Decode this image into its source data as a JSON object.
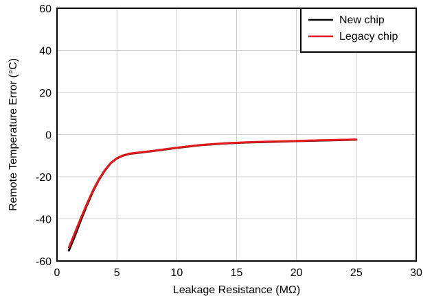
{
  "chart_data": {
    "type": "line",
    "title": "",
    "xlabel": "Leakage Resistance (MΩ)",
    "ylabel": "Remote Temperature Error (°C)",
    "xlim": [
      0,
      30
    ],
    "ylim": [
      -60,
      60
    ],
    "xticks": [
      0,
      5,
      10,
      15,
      20,
      25,
      30
    ],
    "yticks": [
      -60,
      -40,
      -20,
      0,
      20,
      40,
      60
    ],
    "xtick_labels": [
      "0",
      "5",
      "10",
      "15",
      "20",
      "25",
      "30"
    ],
    "ytick_labels": [
      "-60",
      "-40",
      "-20",
      "0",
      "20",
      "40",
      "60"
    ],
    "grid": true,
    "legend_position": "top-right",
    "series": [
      {
        "name": "New chip",
        "color": "#000000",
        "x": [
          1,
          1.5,
          2,
          2.5,
          3,
          3.5,
          4,
          4.5,
          5,
          5.5,
          6,
          7,
          8,
          10,
          12,
          14,
          16,
          18,
          20,
          22,
          25
        ],
        "y": [
          -55,
          -48,
          -40.5,
          -33.5,
          -27,
          -21.5,
          -17,
          -13.5,
          -11.3,
          -10,
          -9.2,
          -8.5,
          -7.8,
          -6.3,
          -5,
          -4.2,
          -3.7,
          -3.4,
          -3.1,
          -2.8,
          -2.4
        ]
      },
      {
        "name": "Legacy chip",
        "color": "#e41a1c",
        "x": [
          1,
          1.5,
          2,
          2.5,
          3,
          3.5,
          4,
          4.5,
          5,
          5.5,
          6,
          7,
          8,
          10,
          12,
          14,
          16,
          18,
          20,
          22,
          25
        ],
        "y": [
          -53.5,
          -46.5,
          -39.5,
          -32.8,
          -26.5,
          -21.2,
          -16.8,
          -13.4,
          -11.2,
          -9.9,
          -9.1,
          -8.4,
          -7.7,
          -6.2,
          -4.9,
          -4.1,
          -3.6,
          -3.3,
          -3,
          -2.7,
          -2.3
        ]
      }
    ]
  }
}
